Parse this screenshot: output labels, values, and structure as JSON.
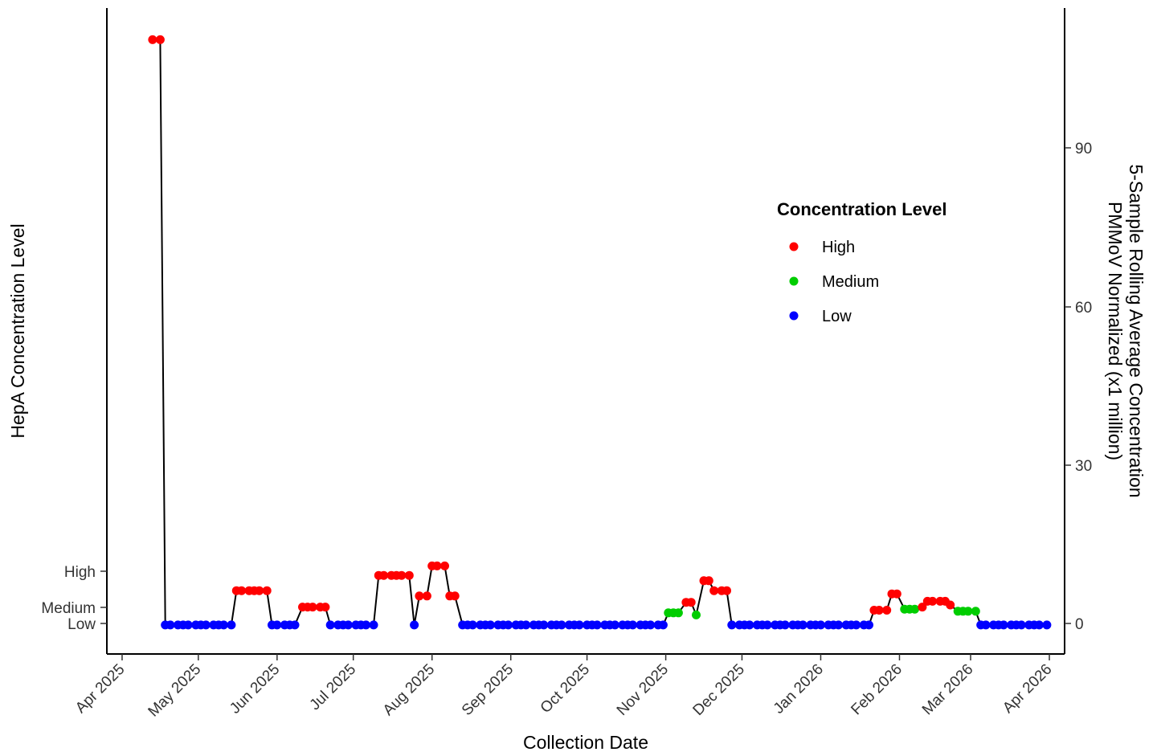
{
  "chart_data": {
    "type": "line",
    "xlabel": "Collection Date",
    "ylabel_left": "HepA Concentration Level",
    "ylabel_right": [
      "5-Sample Rolling Average Concentration",
      "PMMoV Normalized (x1 million)"
    ],
    "x_ticks": [
      "Apr 2025",
      "May 2025",
      "Jun 2025",
      "Jul 2025",
      "Aug 2025",
      "Sep 2025",
      "Oct 2025",
      "Nov 2025",
      "Dec 2025",
      "Jan 2026",
      "Feb 2026",
      "Mar 2026",
      "Apr 2026"
    ],
    "xlim": [
      "2025-03-26",
      "2026-04-07"
    ],
    "y_right_ticks": [
      "0",
      "30",
      "60",
      "90"
    ],
    "ylim_right": [
      -5.5,
      117
    ],
    "y_left_ticks": [
      {
        "label": "Low",
        "value": 0
      },
      {
        "label": "Medium",
        "value": 3
      },
      {
        "label": "High",
        "value": 10
      }
    ],
    "legend": {
      "title": "Concentration Level",
      "placement": "right",
      "items": [
        {
          "label": "High",
          "color": "#ff0000"
        },
        {
          "label": "Medium",
          "color": "#00cd00"
        },
        {
          "label": "Low",
          "color": "#0000ff"
        }
      ]
    },
    "colors": {
      "High": "#ff0000",
      "Medium": "#00cd00",
      "Low": "#0000ff",
      "line": "#000000"
    },
    "grid": false,
    "series": [
      {
        "points": [
          {
            "x": "2025-04-13",
            "y": 111,
            "level": "High"
          },
          {
            "x": "2025-04-16",
            "y": 111,
            "level": "High"
          },
          {
            "x": "2025-04-18",
            "y": 0,
            "level": "Low"
          },
          {
            "x": "2025-04-20",
            "y": 0,
            "level": "Low"
          },
          {
            "x": "2025-04-23",
            "y": 0,
            "level": "Low"
          },
          {
            "x": "2025-04-25",
            "y": 0,
            "level": "Low"
          },
          {
            "x": "2025-04-27",
            "y": 0,
            "level": "Low"
          },
          {
            "x": "2025-04-30",
            "y": 0,
            "level": "Low"
          },
          {
            "x": "2025-05-02",
            "y": 0,
            "level": "Low"
          },
          {
            "x": "2025-05-04",
            "y": 0,
            "level": "Low"
          },
          {
            "x": "2025-05-07",
            "y": 0,
            "level": "Low"
          },
          {
            "x": "2025-05-09",
            "y": 0,
            "level": "Low"
          },
          {
            "x": "2025-05-11",
            "y": 0,
            "level": "Low"
          },
          {
            "x": "2025-05-14",
            "y": 0,
            "level": "Low"
          },
          {
            "x": "2025-05-16",
            "y": 6.5,
            "level": "High"
          },
          {
            "x": "2025-05-18",
            "y": 6.5,
            "level": "High"
          },
          {
            "x": "2025-05-21",
            "y": 6.5,
            "level": "High"
          },
          {
            "x": "2025-05-23",
            "y": 6.5,
            "level": "High"
          },
          {
            "x": "2025-05-25",
            "y": 6.5,
            "level": "High"
          },
          {
            "x": "2025-05-28",
            "y": 6.5,
            "level": "High"
          },
          {
            "x": "2025-05-30",
            "y": 0,
            "level": "Low"
          },
          {
            "x": "2025-06-01",
            "y": 0,
            "level": "Low"
          },
          {
            "x": "2025-06-04",
            "y": 0,
            "level": "Low"
          },
          {
            "x": "2025-06-06",
            "y": 0,
            "level": "Low"
          },
          {
            "x": "2025-06-08",
            "y": 0,
            "level": "Low"
          },
          {
            "x": "2025-06-11",
            "y": 3.4,
            "level": "High"
          },
          {
            "x": "2025-06-13",
            "y": 3.4,
            "level": "High"
          },
          {
            "x": "2025-06-15",
            "y": 3.4,
            "level": "High"
          },
          {
            "x": "2025-06-18",
            "y": 3.4,
            "level": "High"
          },
          {
            "x": "2025-06-20",
            "y": 3.4,
            "level": "High"
          },
          {
            "x": "2025-06-22",
            "y": 0,
            "level": "Low"
          },
          {
            "x": "2025-06-25",
            "y": 0,
            "level": "Low"
          },
          {
            "x": "2025-06-27",
            "y": 0,
            "level": "Low"
          },
          {
            "x": "2025-06-29",
            "y": 0,
            "level": "Low"
          },
          {
            "x": "2025-07-02",
            "y": 0,
            "level": "Low"
          },
          {
            "x": "2025-07-04",
            "y": 0,
            "level": "Low"
          },
          {
            "x": "2025-07-06",
            "y": 0,
            "level": "Low"
          },
          {
            "x": "2025-07-09",
            "y": 0,
            "level": "Low"
          },
          {
            "x": "2025-07-11",
            "y": 9.4,
            "level": "High"
          },
          {
            "x": "2025-07-13",
            "y": 9.4,
            "level": "High"
          },
          {
            "x": "2025-07-16",
            "y": 9.4,
            "level": "High"
          },
          {
            "x": "2025-07-18",
            "y": 9.4,
            "level": "High"
          },
          {
            "x": "2025-07-20",
            "y": 9.4,
            "level": "High"
          },
          {
            "x": "2025-07-23",
            "y": 9.4,
            "level": "High"
          },
          {
            "x": "2025-07-25",
            "y": 0,
            "level": "Low"
          },
          {
            "x": "2025-07-27",
            "y": 5.5,
            "level": "High"
          },
          {
            "x": "2025-07-30",
            "y": 5.5,
            "level": "High"
          },
          {
            "x": "2025-08-01",
            "y": 11.2,
            "level": "High"
          },
          {
            "x": "2025-08-03",
            "y": 11.2,
            "level": "High"
          },
          {
            "x": "2025-08-06",
            "y": 11.2,
            "level": "High"
          },
          {
            "x": "2025-08-08",
            "y": 5.5,
            "level": "High"
          },
          {
            "x": "2025-08-10",
            "y": 5.5,
            "level": "High"
          },
          {
            "x": "2025-08-13",
            "y": 0,
            "level": "Low"
          },
          {
            "x": "2025-08-15",
            "y": 0,
            "level": "Low"
          },
          {
            "x": "2025-08-17",
            "y": 0,
            "level": "Low"
          },
          {
            "x": "2025-08-20",
            "y": 0,
            "level": "Low"
          },
          {
            "x": "2025-08-22",
            "y": 0,
            "level": "Low"
          },
          {
            "x": "2025-08-24",
            "y": 0,
            "level": "Low"
          },
          {
            "x": "2025-08-27",
            "y": 0,
            "level": "Low"
          },
          {
            "x": "2025-08-29",
            "y": 0,
            "level": "Low"
          },
          {
            "x": "2025-08-31",
            "y": 0,
            "level": "Low"
          },
          {
            "x": "2025-09-03",
            "y": 0,
            "level": "Low"
          },
          {
            "x": "2025-09-05",
            "y": 0,
            "level": "Low"
          },
          {
            "x": "2025-09-07",
            "y": 0,
            "level": "Low"
          },
          {
            "x": "2025-09-10",
            "y": 0,
            "level": "Low"
          },
          {
            "x": "2025-09-12",
            "y": 0,
            "level": "Low"
          },
          {
            "x": "2025-09-14",
            "y": 0,
            "level": "Low"
          },
          {
            "x": "2025-09-17",
            "y": 0,
            "level": "Low"
          },
          {
            "x": "2025-09-19",
            "y": 0,
            "level": "Low"
          },
          {
            "x": "2025-09-21",
            "y": 0,
            "level": "Low"
          },
          {
            "x": "2025-09-24",
            "y": 0,
            "level": "Low"
          },
          {
            "x": "2025-09-26",
            "y": 0,
            "level": "Low"
          },
          {
            "x": "2025-09-28",
            "y": 0,
            "level": "Low"
          },
          {
            "x": "2025-10-01",
            "y": 0,
            "level": "Low"
          },
          {
            "x": "2025-10-03",
            "y": 0,
            "level": "Low"
          },
          {
            "x": "2025-10-05",
            "y": 0,
            "level": "Low"
          },
          {
            "x": "2025-10-08",
            "y": 0,
            "level": "Low"
          },
          {
            "x": "2025-10-10",
            "y": 0,
            "level": "Low"
          },
          {
            "x": "2025-10-12",
            "y": 0,
            "level": "Low"
          },
          {
            "x": "2025-10-15",
            "y": 0,
            "level": "Low"
          },
          {
            "x": "2025-10-17",
            "y": 0,
            "level": "Low"
          },
          {
            "x": "2025-10-19",
            "y": 0,
            "level": "Low"
          },
          {
            "x": "2025-10-22",
            "y": 0,
            "level": "Low"
          },
          {
            "x": "2025-10-24",
            "y": 0,
            "level": "Low"
          },
          {
            "x": "2025-10-26",
            "y": 0,
            "level": "Low"
          },
          {
            "x": "2025-10-29",
            "y": 0,
            "level": "Low"
          },
          {
            "x": "2025-10-31",
            "y": 0,
            "level": "Low"
          },
          {
            "x": "2025-11-02",
            "y": 2.3,
            "level": "Medium"
          },
          {
            "x": "2025-11-04",
            "y": 2.3,
            "level": "Medium"
          },
          {
            "x": "2025-11-06",
            "y": 2.3,
            "level": "Medium"
          },
          {
            "x": "2025-11-09",
            "y": 4.3,
            "level": "High"
          },
          {
            "x": "2025-11-11",
            "y": 4.3,
            "level": "High"
          },
          {
            "x": "2025-11-13",
            "y": 1.9,
            "level": "Medium"
          },
          {
            "x": "2025-11-16",
            "y": 8.4,
            "level": "High"
          },
          {
            "x": "2025-11-18",
            "y": 8.4,
            "level": "High"
          },
          {
            "x": "2025-11-20",
            "y": 6.5,
            "level": "High"
          },
          {
            "x": "2025-11-23",
            "y": 6.5,
            "level": "High"
          },
          {
            "x": "2025-11-25",
            "y": 6.5,
            "level": "High"
          },
          {
            "x": "2025-11-27",
            "y": 0,
            "level": "Low"
          },
          {
            "x": "2025-11-30",
            "y": 0,
            "level": "Low"
          },
          {
            "x": "2025-12-02",
            "y": 0,
            "level": "Low"
          },
          {
            "x": "2025-12-04",
            "y": 0,
            "level": "Low"
          },
          {
            "x": "2025-12-07",
            "y": 0,
            "level": "Low"
          },
          {
            "x": "2025-12-09",
            "y": 0,
            "level": "Low"
          },
          {
            "x": "2025-12-11",
            "y": 0,
            "level": "Low"
          },
          {
            "x": "2025-12-14",
            "y": 0,
            "level": "Low"
          },
          {
            "x": "2025-12-16",
            "y": 0,
            "level": "Low"
          },
          {
            "x": "2025-12-18",
            "y": 0,
            "level": "Low"
          },
          {
            "x": "2025-12-21",
            "y": 0,
            "level": "Low"
          },
          {
            "x": "2025-12-23",
            "y": 0,
            "level": "Low"
          },
          {
            "x": "2025-12-25",
            "y": 0,
            "level": "Low"
          },
          {
            "x": "2025-12-28",
            "y": 0,
            "level": "Low"
          },
          {
            "x": "2025-12-30",
            "y": 0,
            "level": "Low"
          },
          {
            "x": "2026-01-01",
            "y": 0,
            "level": "Low"
          },
          {
            "x": "2026-01-04",
            "y": 0,
            "level": "Low"
          },
          {
            "x": "2026-01-06",
            "y": 0,
            "level": "Low"
          },
          {
            "x": "2026-01-08",
            "y": 0,
            "level": "Low"
          },
          {
            "x": "2026-01-11",
            "y": 0,
            "level": "Low"
          },
          {
            "x": "2026-01-13",
            "y": 0,
            "level": "Low"
          },
          {
            "x": "2026-01-15",
            "y": 0,
            "level": "Low"
          },
          {
            "x": "2026-01-18",
            "y": 0,
            "level": "Low"
          },
          {
            "x": "2026-01-20",
            "y": 0,
            "level": "Low"
          },
          {
            "x": "2026-01-22",
            "y": 2.8,
            "level": "High"
          },
          {
            "x": "2026-01-24",
            "y": 2.8,
            "level": "High"
          },
          {
            "x": "2026-01-27",
            "y": 2.8,
            "level": "High"
          },
          {
            "x": "2026-01-29",
            "y": 5.9,
            "level": "High"
          },
          {
            "x": "2026-01-31",
            "y": 5.9,
            "level": "High"
          },
          {
            "x": "2026-02-03",
            "y": 3.0,
            "level": "Medium"
          },
          {
            "x": "2026-02-05",
            "y": 3.0,
            "level": "Medium"
          },
          {
            "x": "2026-02-07",
            "y": 3.0,
            "level": "Medium"
          },
          {
            "x": "2026-02-10",
            "y": 3.4,
            "level": "High"
          },
          {
            "x": "2026-02-12",
            "y": 4.5,
            "level": "High"
          },
          {
            "x": "2026-02-14",
            "y": 4.5,
            "level": "High"
          },
          {
            "x": "2026-02-17",
            "y": 4.5,
            "level": "High"
          },
          {
            "x": "2026-02-19",
            "y": 4.5,
            "level": "High"
          },
          {
            "x": "2026-02-21",
            "y": 3.8,
            "level": "High"
          },
          {
            "x": "2026-02-24",
            "y": 2.6,
            "level": "Medium"
          },
          {
            "x": "2026-02-26",
            "y": 2.6,
            "level": "Medium"
          },
          {
            "x": "2026-02-28",
            "y": 2.6,
            "level": "Medium"
          },
          {
            "x": "2026-03-03",
            "y": 2.6,
            "level": "Medium"
          },
          {
            "x": "2026-03-05",
            "y": 0,
            "level": "Low"
          },
          {
            "x": "2026-03-07",
            "y": 0,
            "level": "Low"
          },
          {
            "x": "2026-03-10",
            "y": 0,
            "level": "Low"
          },
          {
            "x": "2026-03-12",
            "y": 0,
            "level": "Low"
          },
          {
            "x": "2026-03-14",
            "y": 0,
            "level": "Low"
          },
          {
            "x": "2026-03-17",
            "y": 0,
            "level": "Low"
          },
          {
            "x": "2026-03-19",
            "y": 0,
            "level": "Low"
          },
          {
            "x": "2026-03-21",
            "y": 0,
            "level": "Low"
          },
          {
            "x": "2026-03-24",
            "y": 0,
            "level": "Low"
          },
          {
            "x": "2026-03-26",
            "y": 0,
            "level": "Low"
          },
          {
            "x": "2026-03-28",
            "y": 0,
            "level": "Low"
          },
          {
            "x": "2026-03-31",
            "y": 0,
            "level": "Low"
          }
        ]
      }
    ]
  }
}
